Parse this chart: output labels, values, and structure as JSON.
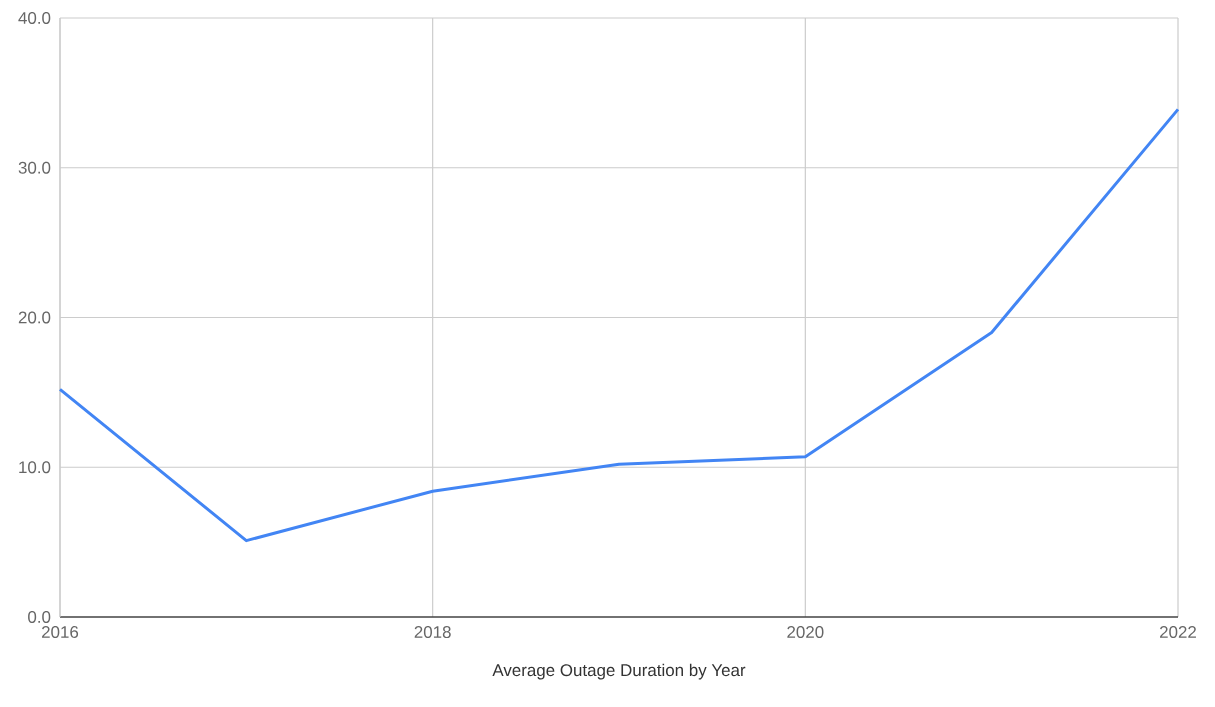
{
  "chart_data": {
    "type": "line",
    "xlabel": "Average Outage Duration by Year",
    "x": [
      2016,
      2017,
      2018,
      2019,
      2020,
      2021,
      2022
    ],
    "values": [
      15.2,
      5.1,
      8.4,
      10.2,
      10.7,
      19.0,
      33.9
    ],
    "color": "#4285f4",
    "xlim": [
      2016,
      2022
    ],
    "xticks": [
      2016,
      2018,
      2020,
      2022
    ],
    "ylim": [
      0,
      40
    ],
    "yticks": [
      {
        "value": 0,
        "label": "0.0"
      },
      {
        "value": 10,
        "label": "10.0"
      },
      {
        "value": 20,
        "label": "20.0"
      },
      {
        "value": 30,
        "label": "30.0"
      },
      {
        "value": 40,
        "label": "40.0"
      }
    ],
    "grid": true,
    "marker": "none",
    "line_style": "solid"
  }
}
